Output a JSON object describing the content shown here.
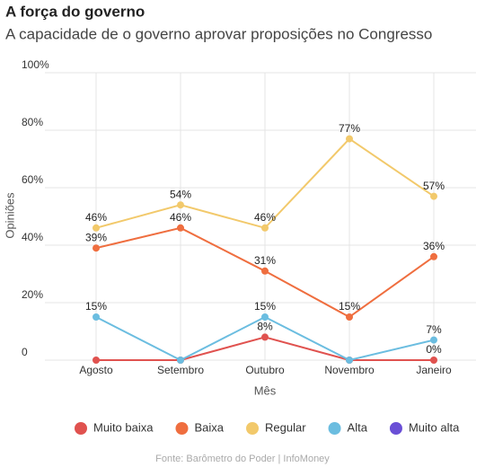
{
  "chart_data": {
    "type": "line",
    "title": "A força do governo",
    "subtitle": "A capacidade de o governo aprovar proposições no Congresso",
    "x_label": "Mês",
    "y_label": "Opiniões",
    "source": "Fonte: Barômetro do Poder | InfoMoney",
    "categories": [
      "Agosto",
      "Setembro",
      "Outubro",
      "Novembro",
      "Janeiro"
    ],
    "ylim": [
      0,
      100
    ],
    "yticks": [
      0,
      {
        "value": 20,
        "label": "20%"
      },
      {
        "value": 40,
        "label": "40%"
      },
      {
        "value": 60,
        "label": "60%"
      },
      {
        "value": 80,
        "label": "80%"
      },
      {
        "value": 100,
        "label": "100%"
      }
    ],
    "grid": true,
    "legend": "bottom",
    "series": [
      {
        "name": "Muito baixa",
        "color": "#e0524f",
        "values": [
          0,
          0,
          8,
          0,
          0
        ],
        "value_labels": [
          null,
          null,
          "8%",
          null,
          "0%"
        ]
      },
      {
        "name": "Baixa",
        "color": "#ef6e3f",
        "values": [
          39,
          46,
          31,
          15,
          36
        ],
        "value_labels": [
          "39%",
          "46%",
          "31%",
          "15%",
          "36%"
        ]
      },
      {
        "name": "Regular",
        "color": "#f2c96b",
        "values": [
          46,
          54,
          46,
          77,
          57
        ],
        "value_labels": [
          "46%",
          "54%",
          "46%",
          "77%",
          "57%"
        ]
      },
      {
        "name": "Alta",
        "color": "#6bbde0",
        "values": [
          15,
          0,
          15,
          0,
          7
        ],
        "value_labels": [
          "15%",
          null,
          "15%",
          null,
          "7%"
        ]
      },
      {
        "name": "Muito alta",
        "color": "#6a4fd6",
        "values": [
          null,
          null,
          null,
          null,
          null
        ]
      }
    ]
  }
}
